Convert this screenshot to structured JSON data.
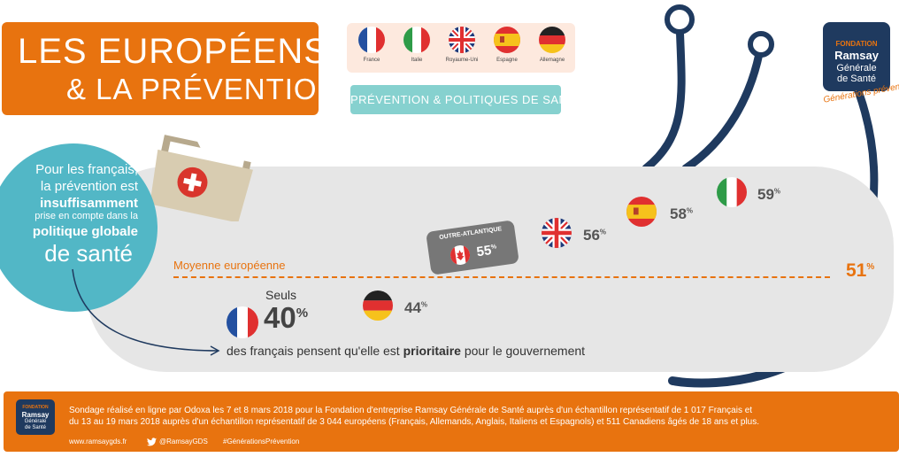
{
  "header": {
    "title_line1": "LES EUROPÉENS",
    "title_line2": "& LA PRÉVENTION",
    "topic_badge": "PRÉVENTION & POLITIQUES DE SANTÉ"
  },
  "country_strip": [
    {
      "label": "France",
      "flag": "france-flag"
    },
    {
      "label": "Italie",
      "flag": "italy-flag"
    },
    {
      "label": "Royaume-Uni",
      "flag": "uk-flag"
    },
    {
      "label": "Espagne",
      "flag": "spain-flag"
    },
    {
      "label": "Allemagne",
      "flag": "germany-flag"
    }
  ],
  "logo": {
    "fondation": "FONDATION",
    "ramsay": "Ramsay",
    "generale": "Générale",
    "sante": "de Santé",
    "tagline": "Générations prévention"
  },
  "intro": {
    "line1": "Pour les français,",
    "line2": "la prévention est",
    "line3": "insuffisamment",
    "line4": "prise en compte dans la",
    "line5": "politique globale",
    "line6": "de santé"
  },
  "average": {
    "label": "Moyenne européenne",
    "value": "51",
    "unit": "%"
  },
  "countries": [
    {
      "name": "Italie",
      "value": "59",
      "unit": "%",
      "flag": "italy-flag"
    },
    {
      "name": "Espagne",
      "value": "58",
      "unit": "%",
      "flag": "spain-flag"
    },
    {
      "name": "Royaume-Uni",
      "value": "56",
      "unit": "%",
      "flag": "uk-flag"
    },
    {
      "name": "Allemagne",
      "value": "44",
      "unit": "%",
      "flag": "germany-flag"
    }
  ],
  "canada": {
    "label": "OUTRE-ATLANTIQUE",
    "value": "55",
    "unit": "%",
    "flag": "canada-flag"
  },
  "france": {
    "prefix": "Seuls",
    "value": "40",
    "unit": "%",
    "sentence_before": "des français pensent qu'elle est ",
    "sentence_bold": "prioritaire",
    "sentence_after": " pour le gouvernement"
  },
  "footer": {
    "text_line1": "Sondage réalisé en ligne par Odoxa les 7 et 8 mars 2018 pour la Fondation d'entreprise Ramsay Générale de Santé auprès d'un échantillon représentatif de 1 017 Français et",
    "text_line2": "du 13 au 19 mars 2018 auprès d'un échantillon représentatif de 3 044 européens (Français, Allemands, Anglais, Italiens et Espagnols) et 511 Canadiens âgés de 18 ans et plus.",
    "website": "www.ramsaygds.fr",
    "twitter": "@RamsayGDS",
    "hashtag": "#GénérationsPrévention"
  },
  "colors": {
    "orange": "#e8730f",
    "teal": "#52b7c6",
    "navy": "#1f3a5f",
    "panel": "#e6e6e6"
  }
}
